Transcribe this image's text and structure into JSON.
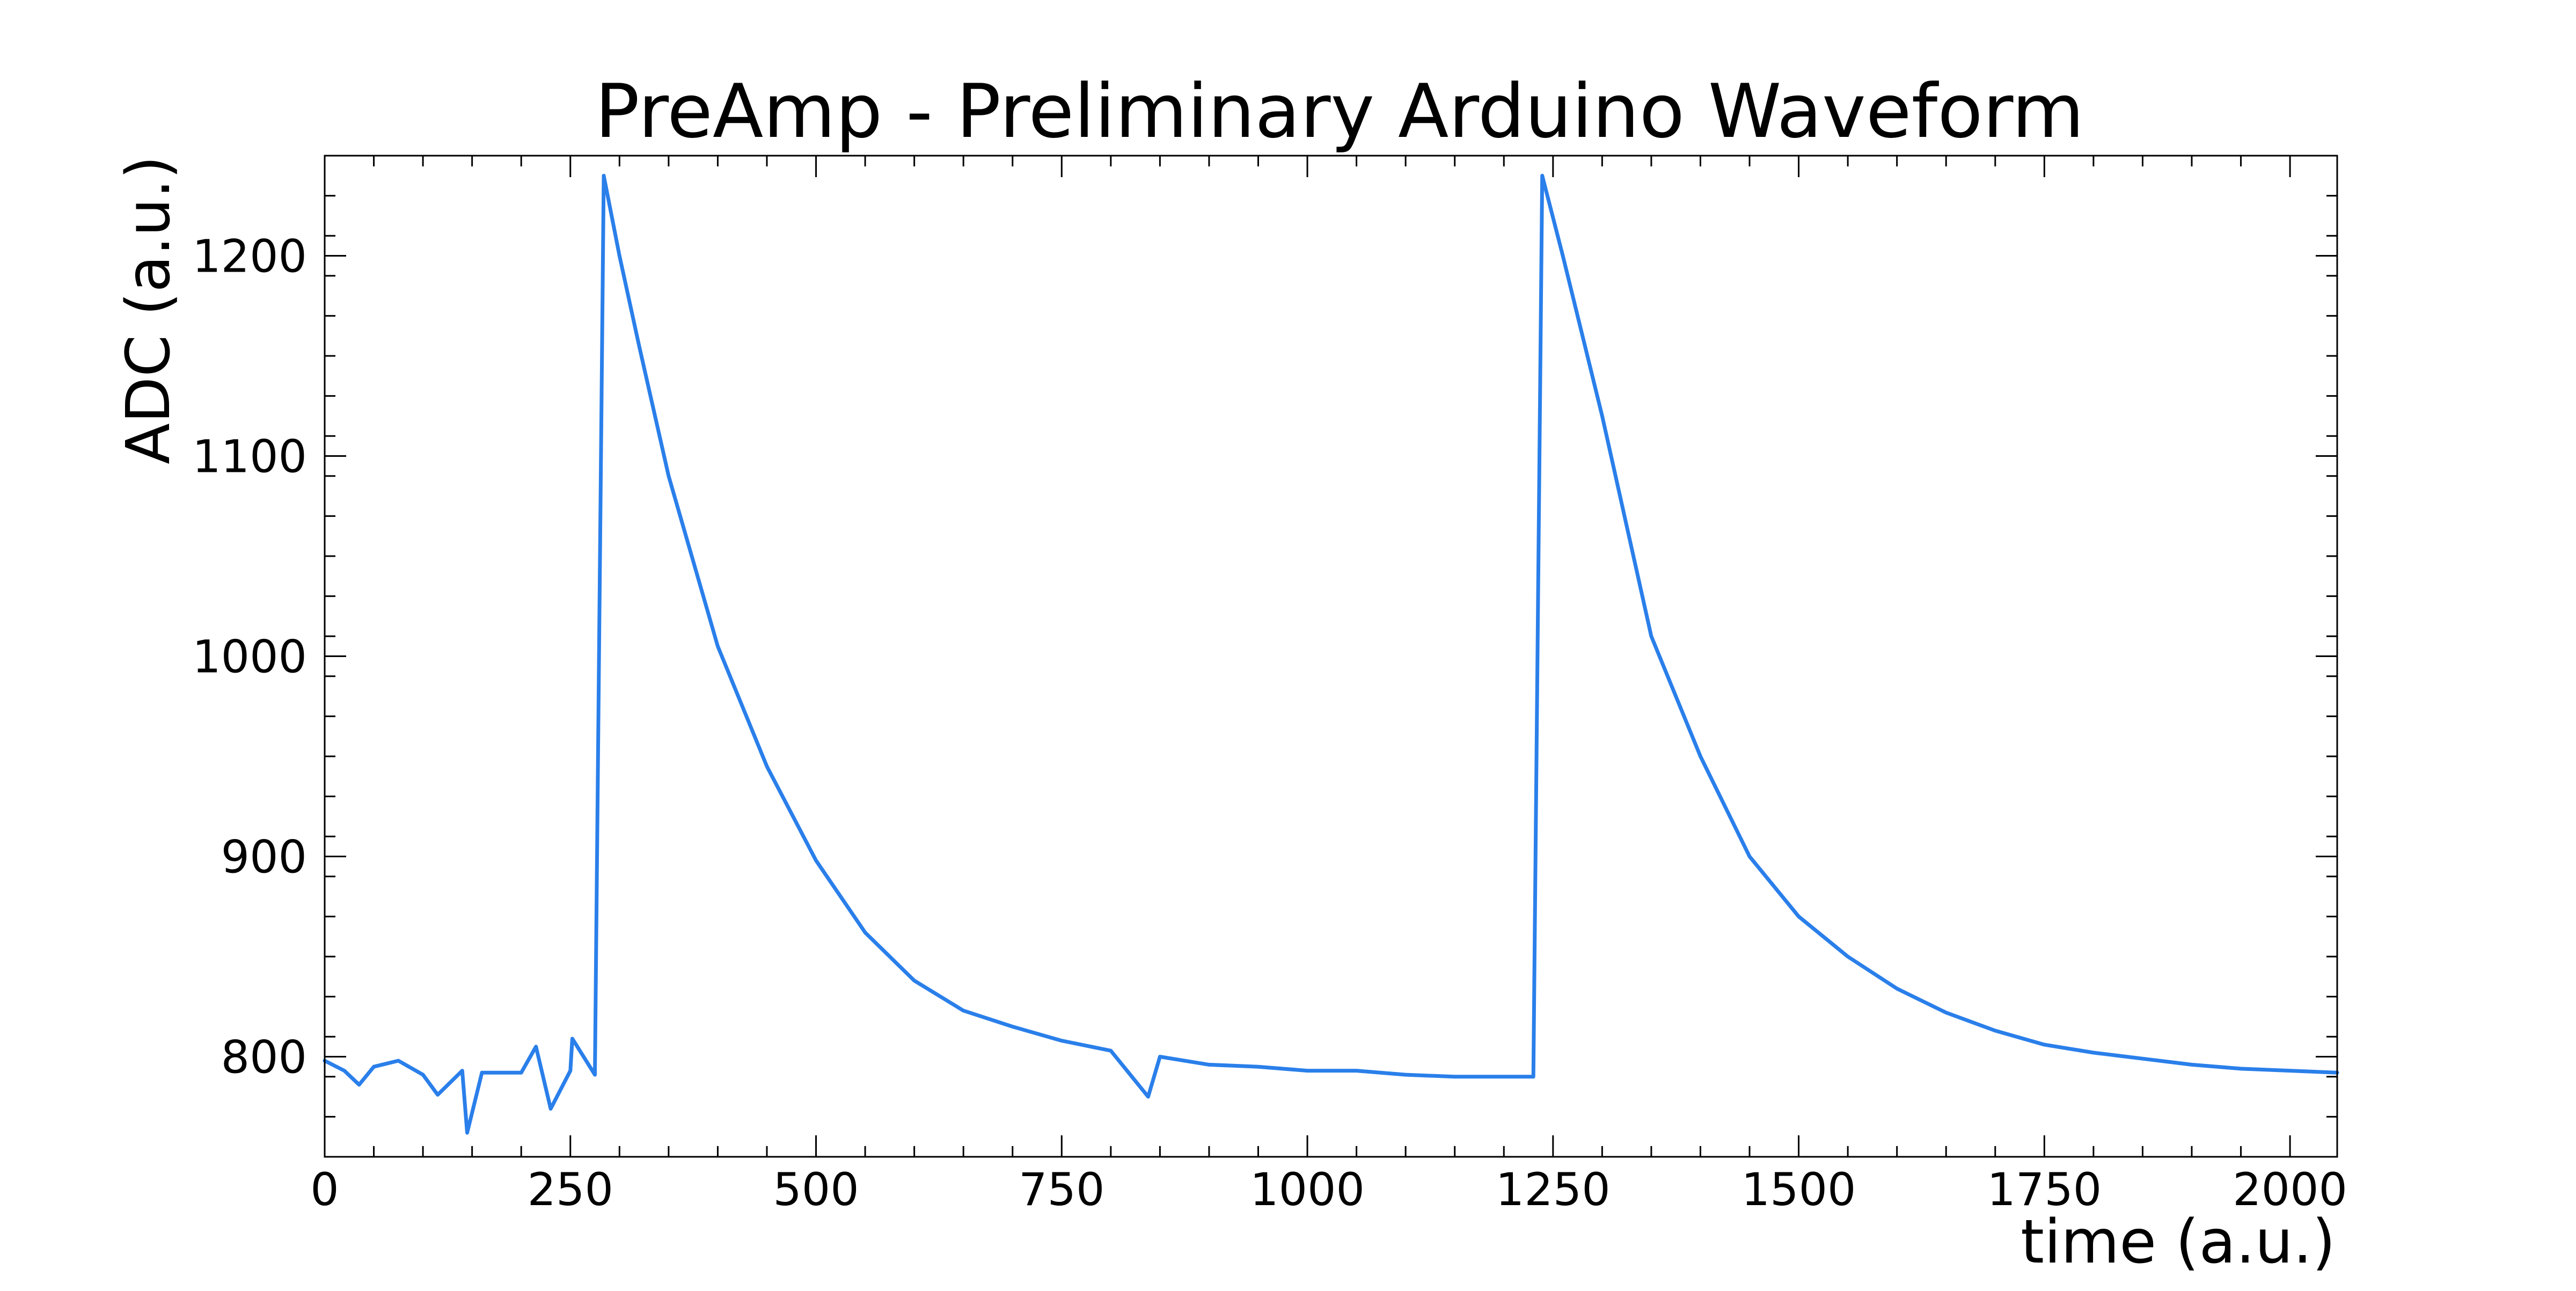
{
  "chart_data": {
    "type": "line",
    "title": "PreAmp - Preliminary Arduino Waveform",
    "xlabel": "time (a.u.)",
    "ylabel": "ADC (a.u.)",
    "xlim": [
      0,
      2048
    ],
    "ylim": [
      750,
      1250
    ],
    "x_ticks": [
      0,
      250,
      500,
      750,
      1000,
      1250,
      1500,
      1750,
      2000
    ],
    "x_tick_labels": [
      "0",
      "250",
      "500",
      "750",
      "1000",
      "1250",
      "1500",
      "1750",
      "2000"
    ],
    "x_minor_step": 50,
    "y_ticks": [
      800,
      900,
      1000,
      1100,
      1200
    ],
    "y_tick_labels": [
      "800",
      "900",
      "1000",
      "1100",
      "1200"
    ],
    "y_minor_step": 20,
    "grid": false,
    "legend": "none",
    "line_color": "#2a7fea",
    "series": [
      {
        "style": "line",
        "pulses": [
          {
            "start_x": 275,
            "peak_x": 284,
            "peak_y": 1240
          },
          {
            "start_x": 1230,
            "peak_x": 1239,
            "peak_y": 1240
          }
        ],
        "baseline": 792,
        "decay_constant": 135,
        "samples": [
          [
            0,
            798
          ],
          [
            20,
            793
          ],
          [
            35,
            786
          ],
          [
            50,
            795
          ],
          [
            75,
            798
          ],
          [
            100,
            791
          ],
          [
            115,
            781
          ],
          [
            140,
            793
          ],
          [
            145,
            762
          ],
          [
            160,
            792
          ],
          [
            200,
            792
          ],
          [
            215,
            805
          ],
          [
            230,
            774
          ],
          [
            250,
            793
          ],
          [
            252,
            809
          ],
          [
            275,
            791
          ],
          [
            284,
            1240
          ],
          [
            300,
            1200
          ],
          [
            320,
            1155
          ],
          [
            350,
            1090
          ],
          [
            400,
            1005
          ],
          [
            450,
            945
          ],
          [
            500,
            898
          ],
          [
            550,
            862
          ],
          [
            600,
            838
          ],
          [
            650,
            823
          ],
          [
            700,
            815
          ],
          [
            750,
            808
          ],
          [
            800,
            803
          ],
          [
            838,
            780
          ],
          [
            850,
            800
          ],
          [
            900,
            796
          ],
          [
            950,
            795
          ],
          [
            1000,
            793
          ],
          [
            1050,
            793
          ],
          [
            1100,
            791
          ],
          [
            1150,
            790
          ],
          [
            1200,
            790
          ],
          [
            1230,
            790
          ],
          [
            1239,
            1240
          ],
          [
            1260,
            1200
          ],
          [
            1300,
            1120
          ],
          [
            1350,
            1010
          ],
          [
            1400,
            950
          ],
          [
            1450,
            900
          ],
          [
            1500,
            870
          ],
          [
            1550,
            850
          ],
          [
            1600,
            834
          ],
          [
            1650,
            822
          ],
          [
            1700,
            813
          ],
          [
            1750,
            806
          ],
          [
            1800,
            802
          ],
          [
            1850,
            799
          ],
          [
            1900,
            796
          ],
          [
            1950,
            794
          ],
          [
            2000,
            793
          ],
          [
            2048,
            792
          ]
        ]
      }
    ]
  }
}
